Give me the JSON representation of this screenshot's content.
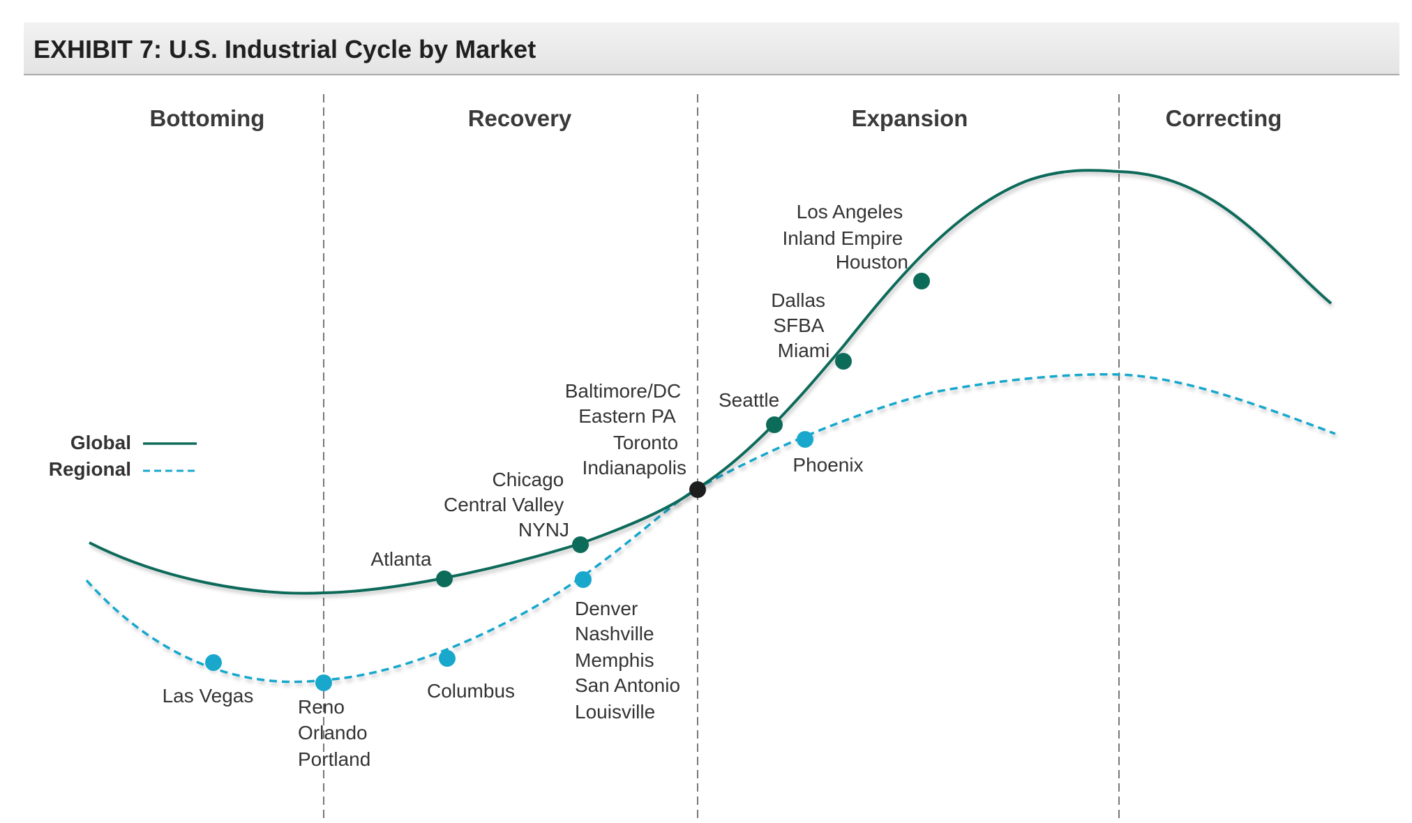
{
  "title": "EXHIBIT 7:  U.S. Industrial Cycle by Market",
  "colors": {
    "global": "#0d6b5a",
    "regional": "#19a7cc",
    "inflection": "#1e1e1e",
    "divider": "#555555"
  },
  "phases": [
    {
      "id": "bottoming",
      "label": "Bottoming"
    },
    {
      "id": "recovery",
      "label": "Recovery"
    },
    {
      "id": "expansion",
      "label": "Expansion"
    },
    {
      "id": "correcting",
      "label": "Correcting"
    }
  ],
  "legend": {
    "global": "Global",
    "regional": "Regional"
  },
  "markets": {
    "global": [
      {
        "id": "atlanta",
        "lines": [
          "Atlanta"
        ]
      },
      {
        "id": "chicago-group",
        "lines": [
          "Chicago",
          "Central Valley",
          "NYNJ"
        ]
      },
      {
        "id": "seattle",
        "lines": [
          "Seattle"
        ]
      },
      {
        "id": "dallas-group",
        "lines": [
          "Dallas",
          "SFBA",
          "Miami"
        ]
      },
      {
        "id": "los-angeles-group",
        "lines": [
          "Los Angeles",
          "Inland Empire",
          "Houston"
        ]
      }
    ],
    "shared": [
      {
        "id": "baltimore-group",
        "lines": [
          "Baltimore/DC",
          "Eastern PA",
          "Toronto",
          "Indianapolis"
        ]
      }
    ],
    "regional": [
      {
        "id": "las-vegas",
        "lines": [
          "Las Vegas"
        ]
      },
      {
        "id": "reno-group",
        "lines": [
          "Reno",
          "Orlando",
          "Portland"
        ]
      },
      {
        "id": "columbus",
        "lines": [
          "Columbus"
        ]
      },
      {
        "id": "denver-group",
        "lines": [
          "Denver",
          "Nashville",
          "Memphis",
          "San Antonio",
          "Louisville"
        ]
      },
      {
        "id": "phoenix",
        "lines": [
          "Phoenix"
        ]
      }
    ]
  }
}
